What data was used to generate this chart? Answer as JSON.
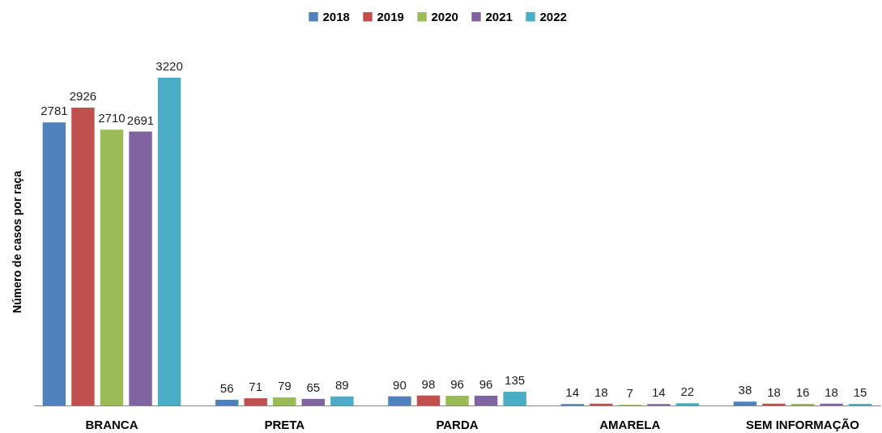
{
  "chart_data": {
    "type": "bar",
    "ylabel": "Número  de casos por raça",
    "categories": [
      "BRANCA",
      "PRETA",
      "PARDA",
      "AMARELA",
      "SEM INFORMAÇÃO"
    ],
    "series": [
      {
        "name": "2018",
        "color": "#4f81bd",
        "values": [
          2781,
          56,
          90,
          14,
          38
        ]
      },
      {
        "name": "2019",
        "color": "#c0504d",
        "values": [
          2926,
          71,
          98,
          18,
          18
        ]
      },
      {
        "name": "2020",
        "color": "#9bbb59",
        "values": [
          2710,
          79,
          96,
          7,
          16
        ]
      },
      {
        "name": "2021",
        "color": "#8064a2",
        "values": [
          2691,
          65,
          96,
          14,
          18
        ]
      },
      {
        "name": "2022",
        "color": "#4bacc6",
        "values": [
          3220,
          89,
          135,
          22,
          15
        ]
      }
    ],
    "data_labels": true,
    "legend": "top",
    "grid": false,
    "tick_labels": "x"
  }
}
